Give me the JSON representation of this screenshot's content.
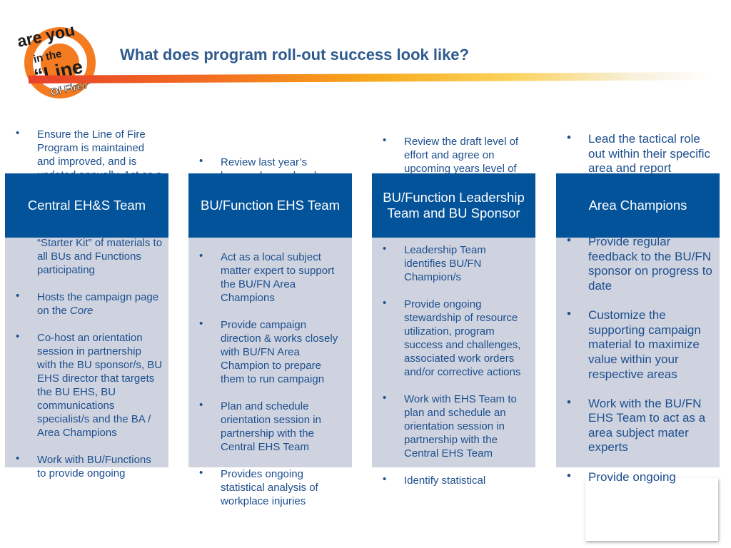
{
  "title": "What does program roll-out success look like?",
  "logo": {
    "lines": [
      "are you",
      "in the",
      "“Line",
      "Of Fire?”"
    ]
  },
  "columns": [
    {
      "header": "Central EH&S Team",
      "bullets": [
        "Ensure the Line of Fire Program is maintained and improved, and is updated annually. Act as a subject matter expert to support the BU/FN EHS Team",
        "Provides a sample “Starter Kit” of materials to all BUs and Functions participating",
        {
          "text": "Hosts the campaign page on the",
          "emphasis": "Core"
        },
        "Co-host an orientation session in partnership with the BU sponsor/s, BU EHS director that targets the BU EHS, BU communications specialist/s and the BA / Area Champions",
        "Work with BU/Functions to provide ongoing"
      ]
    },
    {
      "header": "BU/Function EHS Team",
      "bullets": [
        "Review last year’s lessons learned and performance to help the BU/FN develop and draft upcoming years level of effort proposal",
        "Act as a local subject matter expert to support the BU/FN Area Champions",
        "Provide campaign direction & works closely with BU/FN Area Champion to prepare them to run campaign",
        "Plan and schedule orientation session in partnership with the Central EHS Team",
        "Provides ongoing statistical analysis of workplace injuries"
      ]
    },
    {
      "header": "BU/Function Leadership Team and BU Sponsor",
      "bullets": [
        "Review the draft level of effort and agree on upcoming years level of effort. Identifies a BU/FN Sponsor and communicates expectations",
        "Leadership Team identifies BU/FN Champion/s",
        "Provide ongoing stewardship of resource utilization, program success and challenges, associated work orders and/or corrective actions",
        "Work with EHS Team to plan and schedule an orientation session in partnership with the Central EHS Team",
        "Identify statistical"
      ]
    },
    {
      "header": "Area Champions",
      "bullets": [
        "Lead the tactical role out within their specific area and report progress to the BU/FN EHS Team to highlight opportunities",
        "Provide regular feedback to the BU/FN sponsor on progress to date",
        "Customize the supporting campaign material to maximize value within your respective areas",
        "Work with the BU/FN EHS Team to act as a area subject mater experts",
        "Provide ongoing"
      ]
    }
  ]
}
